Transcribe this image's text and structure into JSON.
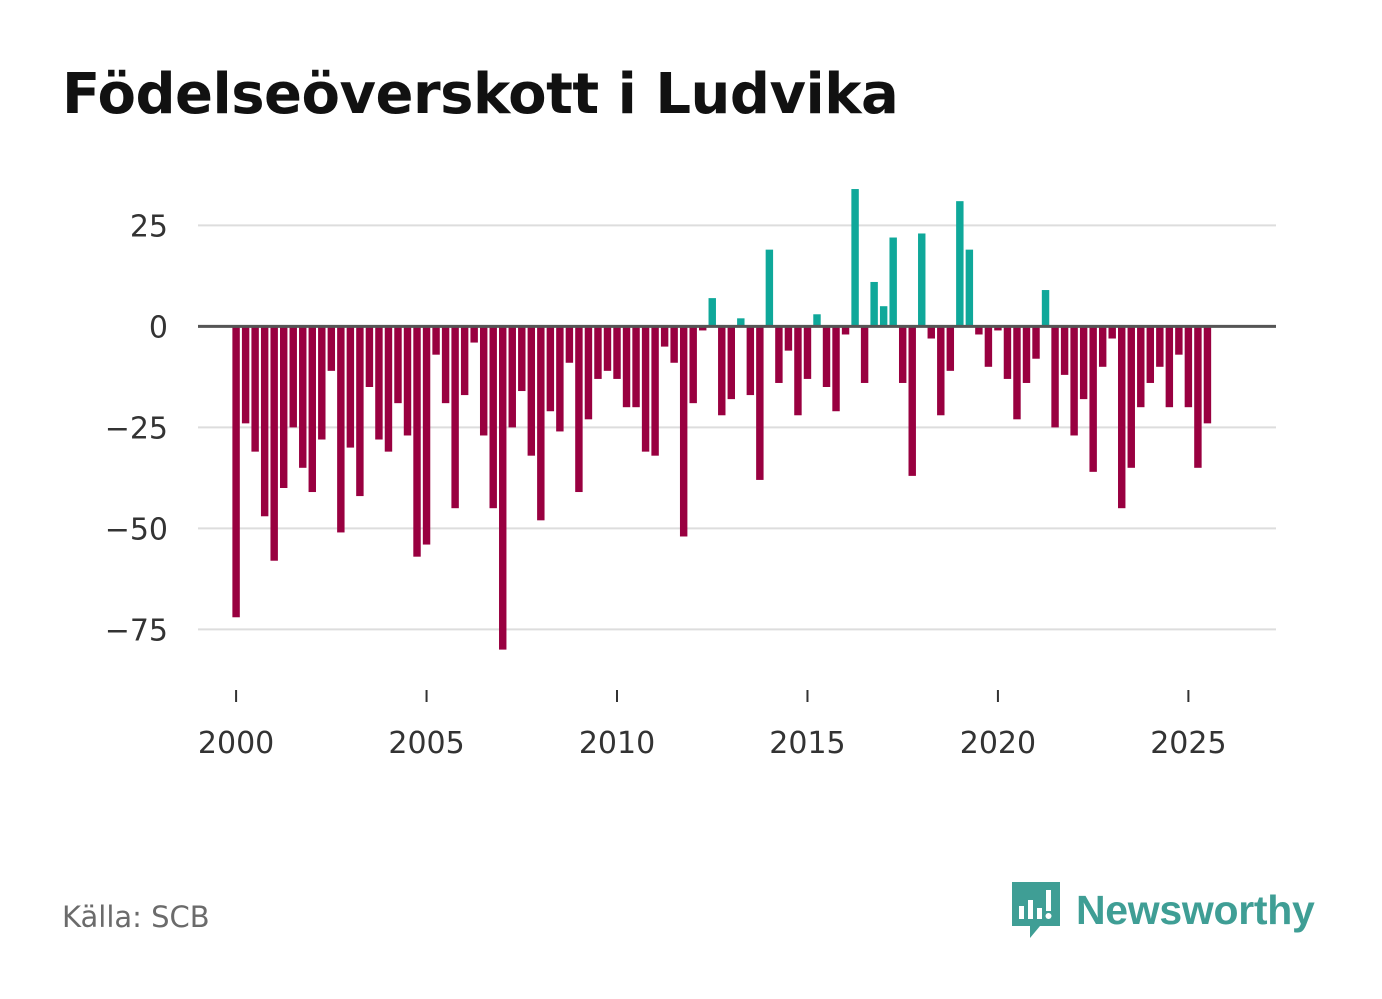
{
  "title": "Födelseöverskott i Ludvika",
  "source": "Källa: SCB",
  "brand": {
    "name": "Newsworthy",
    "icon": "newsworthy-logo-icon"
  },
  "colors": {
    "positive": "#0fa89a",
    "negative": "#990040",
    "zero_line": "#555555",
    "grid": "#dddddd",
    "brand": "#3f9e95"
  },
  "chart_data": {
    "type": "bar",
    "title": "Födelseöverskott i Ludvika",
    "xlabel": "",
    "ylabel": "",
    "x_ticks": [
      "2000",
      "2005",
      "2010",
      "2015",
      "2020",
      "2025"
    ],
    "x_tick_values": [
      2000,
      2005,
      2010,
      2015,
      2020,
      2025
    ],
    "y_ticks": [
      "25",
      "0",
      "−25",
      "−50",
      "−75"
    ],
    "y_tick_values": [
      25,
      0,
      -25,
      -50,
      -75
    ],
    "ylim": [
      -90,
      35
    ],
    "xlim": [
      1999.0,
      2027.3
    ],
    "start_period": 2000.0,
    "period_step": 0.25,
    "values": [
      -72,
      -24,
      -31,
      -47,
      -58,
      -40,
      -25,
      -35,
      -41,
      -28,
      -11,
      -51,
      -30,
      -42,
      -15,
      -28,
      -31,
      -19,
      -27,
      -57,
      -54,
      -7,
      -19,
      -45,
      -17,
      -4,
      -27,
      -45,
      -80,
      -25,
      -16,
      -32,
      -48,
      -21,
      -26,
      -9,
      -41,
      -23,
      -13,
      -11,
      -13,
      -20,
      -20,
      -31,
      -32,
      -5,
      -9,
      -52,
      -19,
      -1,
      7,
      -22,
      -18,
      2,
      -17,
      -38,
      19,
      -14,
      -6,
      -22,
      -13,
      3,
      -15,
      -21,
      -2,
      34,
      -14,
      11,
      5,
      22,
      -14,
      -37,
      23,
      -3,
      -22,
      -11,
      31,
      19,
      -2,
      -10,
      -1,
      -13,
      -23,
      -14,
      -8,
      9,
      -25,
      -12,
      -27,
      -18,
      -36,
      -10,
      -3,
      -45,
      -35,
      -20,
      -14,
      -10,
      -20,
      -7,
      -20,
      -35,
      -24
    ]
  }
}
